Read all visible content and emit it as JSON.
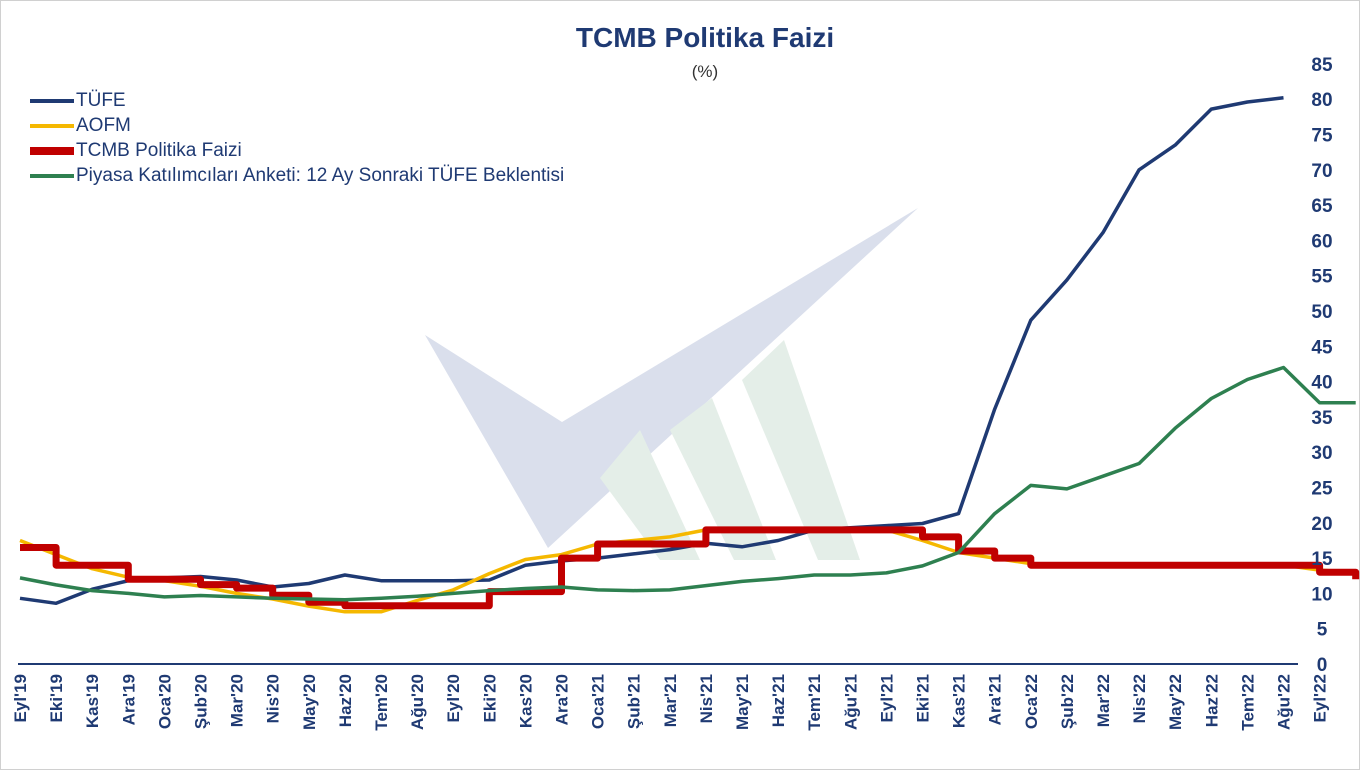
{
  "chart_data": {
    "type": "line",
    "title": "TCMB Politika Faizi",
    "subtitle": "(%)",
    "ylim": [
      0,
      85
    ],
    "yticks": [
      0,
      5,
      10,
      15,
      20,
      25,
      30,
      35,
      40,
      45,
      50,
      55,
      60,
      65,
      70,
      75,
      80,
      85
    ],
    "y_axis_position": "right",
    "legend_position": "top-left",
    "grid": false,
    "categories": [
      "Eyl'19",
      "Eki'19",
      "Kas'19",
      "Ara'19",
      "Oca'20",
      "Şub'20",
      "Mar'20",
      "Nis'20",
      "May'20",
      "Haz'20",
      "Tem'20",
      "Ağu'20",
      "Eyl'20",
      "Eki'20",
      "Kas'20",
      "Ara'20",
      "Oca'21",
      "Şub'21",
      "Mar'21",
      "Nis'21",
      "May'21",
      "Haz'21",
      "Tem'21",
      "Ağu'21",
      "Eyl'21",
      "Eki'21",
      "Kas'21",
      "Ara'21",
      "Oca'22",
      "Şub'22",
      "Mar'22",
      "Nis'22",
      "May'22",
      "Haz'22",
      "Tem'22",
      "Ağu'22",
      "Eyl'22"
    ],
    "series": [
      {
        "name": "TÜFE",
        "color": "#1f3a73",
        "style": "line",
        "x": [
          0,
          1,
          2,
          3,
          4,
          5,
          6,
          7,
          8,
          9,
          10,
          11,
          12,
          13,
          14,
          15,
          16,
          17,
          18,
          19,
          20,
          21,
          22,
          23,
          24,
          25,
          26,
          27,
          28,
          29,
          30,
          31,
          32,
          33,
          34,
          35
        ],
        "values": [
          9.3,
          8.6,
          10.6,
          11.8,
          12.2,
          12.4,
          11.9,
          10.9,
          11.4,
          12.6,
          11.8,
          11.8,
          11.8,
          11.9,
          14.0,
          14.6,
          15.0,
          15.6,
          16.2,
          17.1,
          16.6,
          17.5,
          19.0,
          19.3,
          19.6,
          19.9,
          21.3,
          36.1,
          48.7,
          54.4,
          61.1,
          70.0,
          73.5,
          78.6,
          79.6,
          80.2
        ]
      },
      {
        "name": "AOFM",
        "color": "#f5b800",
        "style": "line",
        "x": [
          0,
          1,
          2,
          3,
          4,
          5,
          6,
          7,
          8,
          9,
          10,
          11,
          12,
          13,
          14,
          15,
          16,
          17,
          18,
          19,
          20,
          21,
          22,
          23,
          24,
          25,
          26,
          27,
          28,
          29,
          30,
          31,
          32,
          33,
          34,
          35,
          36,
          37
        ],
        "values": [
          17.5,
          15.5,
          13.5,
          12.3,
          11.8,
          11.0,
          10.0,
          9.2,
          8.2,
          7.4,
          7.4,
          9.0,
          10.5,
          12.8,
          14.8,
          15.5,
          17.0,
          17.5,
          18.0,
          19.0,
          19.0,
          19.0,
          19.0,
          19.0,
          19.0,
          17.5,
          15.8,
          15.0,
          14.2,
          14.1,
          14.1,
          14.1,
          14.1,
          14.1,
          14.1,
          14.0,
          13.3,
          13.0
        ]
      },
      {
        "name": "TCMB Politika Faizi",
        "color": "#c00000",
        "style": "step",
        "x": [
          0,
          1,
          2,
          3,
          4,
          5,
          6,
          7,
          8,
          9,
          10,
          11,
          12,
          13,
          14,
          15,
          16,
          17,
          18,
          19,
          20,
          21,
          22,
          23,
          24,
          25,
          26,
          27,
          28,
          29,
          30,
          31,
          32,
          33,
          34,
          35,
          36
        ],
        "values": [
          16.5,
          14.0,
          14.0,
          12.0,
          12.0,
          11.25,
          10.75,
          9.75,
          8.75,
          8.25,
          8.25,
          8.25,
          8.25,
          10.25,
          10.25,
          15.0,
          17.0,
          17.0,
          17.0,
          19.0,
          19.0,
          19.0,
          19.0,
          19.0,
          19.0,
          18.0,
          16.0,
          15.0,
          14.0,
          14.0,
          14.0,
          14.0,
          14.0,
          14.0,
          14.0,
          14.0,
          13.0
        ],
        "step_end": 37,
        "step_end_value": 12.0
      },
      {
        "name": "Piyasa Katılımcıları Anketi: 12 Ay Sonraki TÜFE Beklentisi",
        "color": "#2e8050",
        "style": "line",
        "x": [
          0,
          1,
          2,
          3,
          4,
          5,
          6,
          7,
          8,
          9,
          10,
          11,
          12,
          13,
          14,
          15,
          16,
          17,
          18,
          19,
          20,
          21,
          22,
          23,
          24,
          25,
          26,
          27,
          28,
          29,
          30,
          31,
          32,
          33,
          34,
          35,
          36,
          37
        ],
        "values": [
          12.2,
          11.2,
          10.4,
          10.0,
          9.5,
          9.7,
          9.5,
          9.3,
          9.2,
          9.1,
          9.3,
          9.6,
          10.0,
          10.4,
          10.7,
          10.9,
          10.5,
          10.4,
          10.5,
          11.1,
          11.7,
          12.1,
          12.6,
          12.6,
          12.9,
          13.9,
          15.8,
          21.3,
          25.3,
          24.8,
          26.6,
          28.4,
          33.4,
          37.6,
          40.3,
          42.0,
          37.0,
          37.0
        ]
      }
    ]
  }
}
